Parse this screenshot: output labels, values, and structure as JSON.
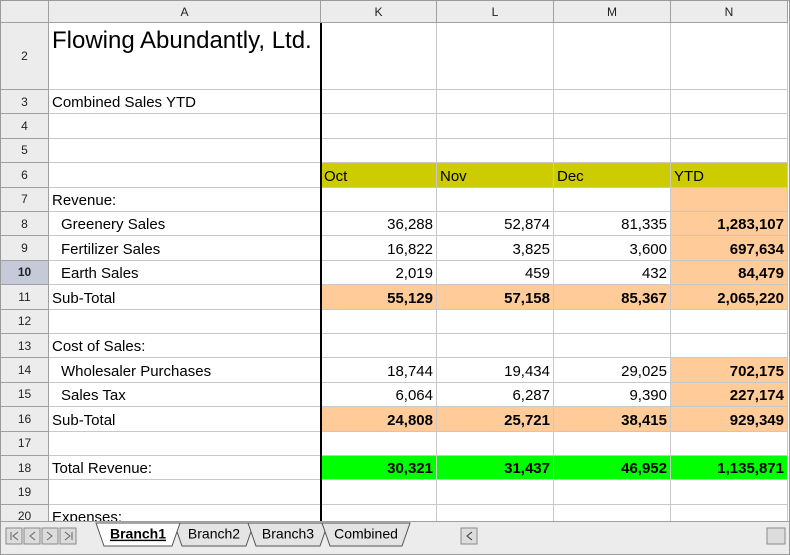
{
  "sheet": {
    "columns": [
      "A",
      "K",
      "L",
      "M",
      "N"
    ],
    "rows": [
      {
        "num": "2",
        "cells": {
          "A": "Flowing Abundantly, Ltd."
        },
        "title": true
      },
      {
        "num": "3",
        "cells": {
          "A": "Combined Sales YTD"
        }
      },
      {
        "num": "4",
        "cells": {}
      },
      {
        "num": "5",
        "cells": {}
      },
      {
        "num": "6",
        "cells": {
          "K": "Oct",
          "L": "Nov",
          "M": "Dec",
          "N": "YTD"
        },
        "fill": {
          "K": "#cccc00",
          "L": "#cccc00",
          "M": "#cccc00",
          "N": "#cccc00"
        },
        "left": true
      },
      {
        "num": "7",
        "cells": {
          "A": "Revenue:"
        },
        "fill": {
          "N": "#ffcc99"
        }
      },
      {
        "num": "8",
        "cells": {
          "A": "Greenery Sales",
          "K": "36,288",
          "L": "52,874",
          "M": "81,335",
          "N": "1,283,107"
        },
        "indent": true,
        "fill": {
          "N": "#ffcc99"
        },
        "bold": [
          "N"
        ]
      },
      {
        "num": "9",
        "cells": {
          "A": "Fertilizer Sales",
          "K": "16,822",
          "L": "3,825",
          "M": "3,600",
          "N": "697,634"
        },
        "indent": true,
        "fill": {
          "N": "#ffcc99"
        },
        "bold": [
          "N"
        ]
      },
      {
        "num": "10",
        "cells": {
          "A": "Earth Sales",
          "K": "2,019",
          "L": "459",
          "M": "432",
          "N": "84,479"
        },
        "indent": true,
        "fill": {
          "N": "#ffcc99"
        },
        "bold": [
          "N"
        ],
        "active": true
      },
      {
        "num": "11",
        "cells": {
          "A": "Sub-Total",
          "K": "55,129",
          "L": "57,158",
          "M": "85,367",
          "N": "2,065,220"
        },
        "fill": {
          "K": "#ffcc99",
          "L": "#ffcc99",
          "M": "#ffcc99",
          "N": "#ffcc99"
        },
        "bold": [
          "K",
          "L",
          "M",
          "N"
        ]
      },
      {
        "num": "12",
        "cells": {}
      },
      {
        "num": "13",
        "cells": {
          "A": "Cost of Sales:"
        }
      },
      {
        "num": "14",
        "cells": {
          "A": "Wholesaler Purchases",
          "K": "18,744",
          "L": "19,434",
          "M": "29,025",
          "N": "702,175"
        },
        "indent": true,
        "fill": {
          "N": "#ffcc99"
        },
        "bold": [
          "N"
        ]
      },
      {
        "num": "15",
        "cells": {
          "A": "Sales Tax",
          "K": "6,064",
          "L": "6,287",
          "M": "9,390",
          "N": "227,174"
        },
        "indent": true,
        "fill": {
          "N": "#ffcc99"
        },
        "bold": [
          "N"
        ]
      },
      {
        "num": "16",
        "cells": {
          "A": "Sub-Total",
          "K": "24,808",
          "L": "25,721",
          "M": "38,415",
          "N": "929,349"
        },
        "fill": {
          "K": "#ffcc99",
          "L": "#ffcc99",
          "M": "#ffcc99",
          "N": "#ffcc99"
        },
        "bold": [
          "K",
          "L",
          "M",
          "N"
        ]
      },
      {
        "num": "17",
        "cells": {}
      },
      {
        "num": "18",
        "cells": {
          "A": "Total Revenue:",
          "K": "30,321",
          "L": "31,437",
          "M": "46,952",
          "N": "1,135,871"
        },
        "fill": {
          "K": "#00ff00",
          "L": "#00ff00",
          "M": "#00ff00",
          "N": "#00ff00"
        },
        "bold": [
          "K",
          "L",
          "M",
          "N"
        ]
      },
      {
        "num": "19",
        "cells": {}
      },
      {
        "num": "20",
        "cells": {
          "A": "Expenses:"
        }
      }
    ],
    "tabs": [
      {
        "label": "Branch1",
        "active": true
      },
      {
        "label": "Branch2"
      },
      {
        "label": "Branch3"
      },
      {
        "label": "Combined"
      }
    ]
  }
}
